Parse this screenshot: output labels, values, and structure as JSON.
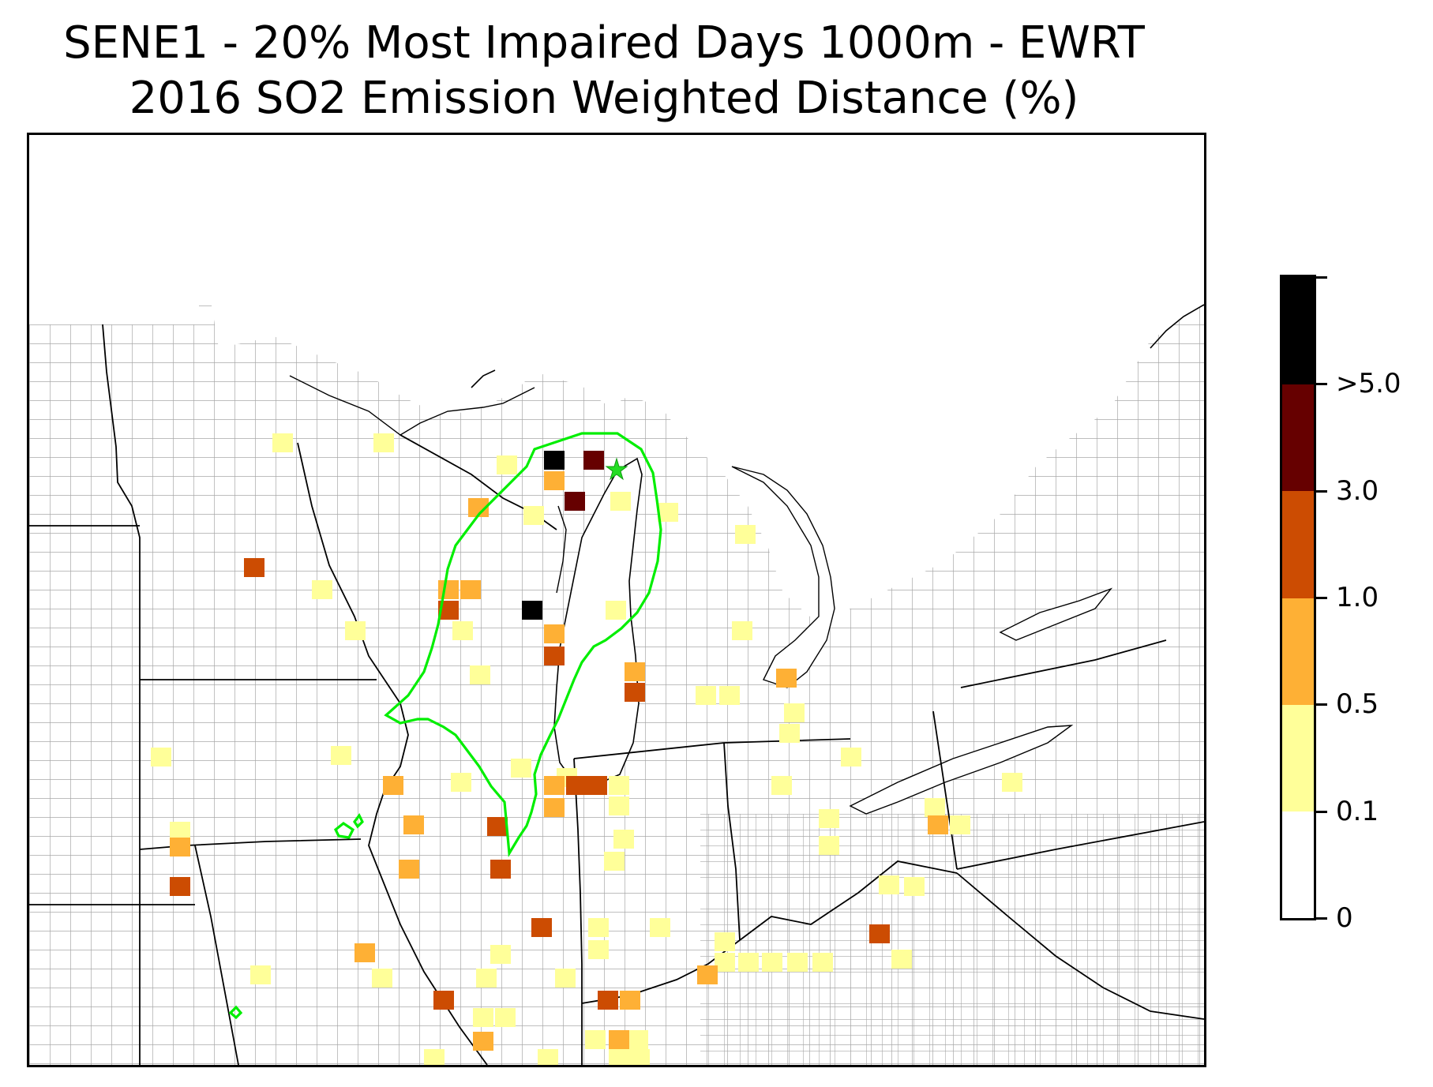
{
  "title": {
    "line1": "SENE1 - 20% Most Impaired Days 1000m - EWRT",
    "line2": "2016 SO2 Emission Weighted Distance (%)"
  },
  "legend": {
    "bins": [
      {
        "label": "0",
        "color": "#ffffff"
      },
      {
        "label": "0.1",
        "color": "#ffff99"
      },
      {
        "label": "0.5",
        "color": "#feb035"
      },
      {
        "label": "1.0",
        "color": "#cc4c02"
      },
      {
        "label": "3.0",
        "color": "#660000"
      },
      {
        "label": ">5.0",
        "color": "#000000"
      }
    ]
  },
  "map": {
    "region": "Upper Midwest / Great Lakes, USA",
    "site_marker": {
      "icon": "star-icon",
      "color": "#22dd22"
    },
    "contour_color": "#00ee00",
    "boundary_state_color": "#000000",
    "boundary_county_color": "#9a9a9a"
  }
}
